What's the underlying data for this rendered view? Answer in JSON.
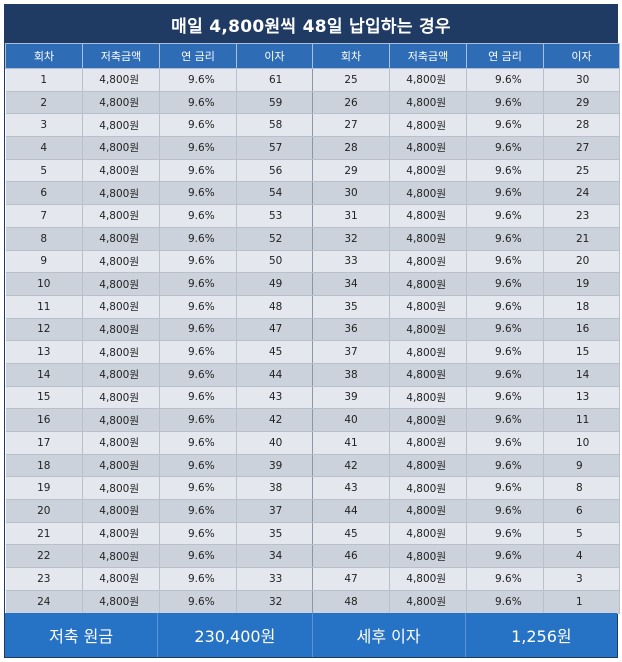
{
  "title": "매일 4,800원씩 48일 납입하는 경우",
  "headers": [
    "회차",
    "저축금액",
    "연 금리",
    "이자",
    "회차",
    "저축금액",
    "연 금리",
    "이자"
  ],
  "rows": [
    [
      "1",
      "4,800원",
      "9.6%",
      "61",
      "25",
      "4,800원",
      "9.6%",
      "30"
    ],
    [
      "2",
      "4,800원",
      "9.6%",
      "59",
      "26",
      "4,800원",
      "9.6%",
      "29"
    ],
    [
      "3",
      "4,800원",
      "9.6%",
      "58",
      "27",
      "4,800원",
      "9.6%",
      "28"
    ],
    [
      "4",
      "4,800원",
      "9.6%",
      "57",
      "28",
      "4,800원",
      "9.6%",
      "27"
    ],
    [
      "5",
      "4,800원",
      "9.6%",
      "56",
      "29",
      "4,800원",
      "9.6%",
      "25"
    ],
    [
      "6",
      "4,800원",
      "9.6%",
      "54",
      "30",
      "4,800원",
      "9.6%",
      "24"
    ],
    [
      "7",
      "4,800원",
      "9.6%",
      "53",
      "31",
      "4,800원",
      "9.6%",
      "23"
    ],
    [
      "8",
      "4,800원",
      "9.6%",
      "52",
      "32",
      "4,800원",
      "9.6%",
      "21"
    ],
    [
      "9",
      "4,800원",
      "9.6%",
      "50",
      "33",
      "4,800원",
      "9.6%",
      "20"
    ],
    [
      "10",
      "4,800원",
      "9.6%",
      "49",
      "34",
      "4,800원",
      "9.6%",
      "19"
    ],
    [
      "11",
      "4,800원",
      "9.6%",
      "48",
      "35",
      "4,800원",
      "9.6%",
      "18"
    ],
    [
      "12",
      "4,800원",
      "9.6%",
      "47",
      "36",
      "4,800원",
      "9.6%",
      "16"
    ],
    [
      "13",
      "4,800원",
      "9.6%",
      "45",
      "37",
      "4,800원",
      "9.6%",
      "15"
    ],
    [
      "14",
      "4,800원",
      "9.6%",
      "44",
      "38",
      "4,800원",
      "9.6%",
      "14"
    ],
    [
      "15",
      "4,800원",
      "9.6%",
      "43",
      "39",
      "4,800원",
      "9.6%",
      "13"
    ],
    [
      "16",
      "4,800원",
      "9.6%",
      "42",
      "40",
      "4,800원",
      "9.6%",
      "11"
    ],
    [
      "17",
      "4,800원",
      "9.6%",
      "40",
      "41",
      "4,800원",
      "9.6%",
      "10"
    ],
    [
      "18",
      "4,800원",
      "9.6%",
      "39",
      "42",
      "4,800원",
      "9.6%",
      "9"
    ],
    [
      "19",
      "4,800원",
      "9.6%",
      "38",
      "43",
      "4,800원",
      "9.6%",
      "8"
    ],
    [
      "20",
      "4,800원",
      "9.6%",
      "37",
      "44",
      "4,800원",
      "9.6%",
      "6"
    ],
    [
      "21",
      "4,800원",
      "9.6%",
      "35",
      "45",
      "4,800원",
      "9.6%",
      "5"
    ],
    [
      "22",
      "4,800원",
      "9.6%",
      "34",
      "46",
      "4,800원",
      "9.6%",
      "4"
    ],
    [
      "23",
      "4,800원",
      "9.6%",
      "33",
      "47",
      "4,800원",
      "9.6%",
      "3"
    ],
    [
      "24",
      "4,800원",
      "9.6%",
      "32",
      "48",
      "4,800원",
      "9.6%",
      "1"
    ]
  ],
  "footer": {
    "principal_label": "저축 원금",
    "principal_value": "230,400원",
    "interest_label": "세후 이자",
    "interest_value": "1,256원"
  },
  "colors": {
    "title_bg": "#1f3a63",
    "header_bg": "#2e6cb6",
    "footer_bg": "#2672c4",
    "row_light": "#e4e8ee",
    "row_dark": "#cbd2db"
  }
}
